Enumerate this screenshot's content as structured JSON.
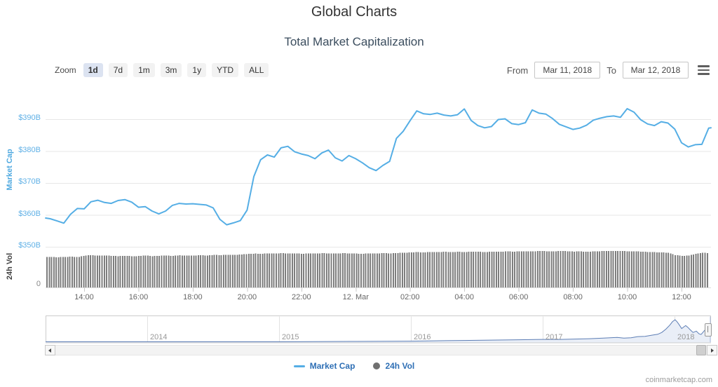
{
  "page": {
    "title": "Global Charts",
    "subtitle": "Total Market Capitalization",
    "watermark": "coinmarketcap.com"
  },
  "toolbar": {
    "zoom_label": "Zoom",
    "zoom_buttons": [
      {
        "label": "1d",
        "selected": true
      },
      {
        "label": "7d",
        "selected": false
      },
      {
        "label": "1m",
        "selected": false
      },
      {
        "label": "3m",
        "selected": false
      },
      {
        "label": "1y",
        "selected": false
      },
      {
        "label": "YTD",
        "selected": false
      },
      {
        "label": "ALL",
        "selected": false
      }
    ],
    "from_label": "From",
    "from_value": "Mar 11, 2018",
    "to_label": "To",
    "to_value": "Mar 12, 2018"
  },
  "legend": {
    "items": [
      {
        "label": "Market Cap",
        "marker": "line",
        "color": "#55aee5"
      },
      {
        "label": "24h Vol",
        "marker": "circle",
        "color": "#707070"
      }
    ]
  },
  "chart_data": {
    "type": "line+column",
    "title": "Total Market Capitalization",
    "yaxis": {
      "title": "Market Cap",
      "tick_labels": [
        "$390B",
        "$380B",
        "$370B",
        "$360B",
        "$350B"
      ],
      "tick_values": [
        390,
        380,
        370,
        360,
        350
      ],
      "unit": "USD billions",
      "label_color": "#5fb0e6"
    },
    "vol_axis": {
      "title": "24h Vol",
      "zero_label": "0"
    },
    "xaxis": {
      "tick_labels": [
        "14:00",
        "16:00",
        "18:00",
        "20:00",
        "22:00",
        "12. Mar",
        "02:00",
        "04:00",
        "06:00",
        "08:00",
        "10:00",
        "12:00"
      ]
    },
    "series": {
      "market_cap": {
        "name": "Market Cap",
        "color": "#55aee5",
        "points": [
          [
            "12:35",
            359.0
          ],
          [
            "12:45",
            358.8
          ],
          [
            "13:00",
            358.1
          ],
          [
            "13:15",
            357.4
          ],
          [
            "13:30",
            360.2
          ],
          [
            "13:45",
            362.0
          ],
          [
            "14:00",
            361.9
          ],
          [
            "14:15",
            364.1
          ],
          [
            "14:30",
            364.6
          ],
          [
            "14:45",
            363.9
          ],
          [
            "15:00",
            363.6
          ],
          [
            "15:15",
            364.5
          ],
          [
            "15:30",
            364.8
          ],
          [
            "15:45",
            364.0
          ],
          [
            "16:00",
            362.4
          ],
          [
            "16:15",
            362.6
          ],
          [
            "16:30",
            361.2
          ],
          [
            "16:45",
            360.3
          ],
          [
            "17:00",
            361.2
          ],
          [
            "17:15",
            363.0
          ],
          [
            "17:30",
            363.6
          ],
          [
            "17:45",
            363.4
          ],
          [
            "18:00",
            363.5
          ],
          [
            "18:15",
            363.3
          ],
          [
            "18:30",
            363.1
          ],
          [
            "18:45",
            362.2
          ],
          [
            "19:00",
            358.6
          ],
          [
            "19:15",
            356.9
          ],
          [
            "19:30",
            357.5
          ],
          [
            "19:45",
            358.2
          ],
          [
            "20:00",
            361.5
          ],
          [
            "20:15",
            372.0
          ],
          [
            "20:30",
            377.3
          ],
          [
            "20:45",
            378.8
          ],
          [
            "21:00",
            378.1
          ],
          [
            "21:15",
            381.0
          ],
          [
            "21:30",
            381.5
          ],
          [
            "21:45",
            379.8
          ],
          [
            "22:00",
            379.1
          ],
          [
            "22:15",
            378.6
          ],
          [
            "22:30",
            377.6
          ],
          [
            "22:45",
            379.4
          ],
          [
            "23:00",
            380.3
          ],
          [
            "23:15",
            377.9
          ],
          [
            "23:30",
            376.9
          ],
          [
            "23:45",
            378.6
          ],
          [
            "00:00",
            377.6
          ],
          [
            "00:15",
            376.3
          ],
          [
            "00:30",
            374.8
          ],
          [
            "00:45",
            373.9
          ],
          [
            "01:00",
            375.5
          ],
          [
            "01:15",
            376.8
          ],
          [
            "01:30",
            384.0
          ],
          [
            "01:45",
            386.2
          ],
          [
            "02:00",
            389.5
          ],
          [
            "02:15",
            392.6
          ],
          [
            "02:30",
            391.7
          ],
          [
            "02:45",
            391.5
          ],
          [
            "03:00",
            391.9
          ],
          [
            "03:15",
            391.3
          ],
          [
            "03:30",
            391.0
          ],
          [
            "03:45",
            391.4
          ],
          [
            "04:00",
            393.2
          ],
          [
            "04:15",
            389.6
          ],
          [
            "04:30",
            388.0
          ],
          [
            "04:45",
            387.3
          ],
          [
            "05:00",
            387.7
          ],
          [
            "05:15",
            389.9
          ],
          [
            "05:30",
            390.1
          ],
          [
            "05:45",
            388.6
          ],
          [
            "06:00",
            388.3
          ],
          [
            "06:15",
            388.9
          ],
          [
            "06:30",
            392.9
          ],
          [
            "06:45",
            391.9
          ],
          [
            "07:00",
            391.6
          ],
          [
            "07:15",
            390.2
          ],
          [
            "07:30",
            388.4
          ],
          [
            "07:45",
            387.6
          ],
          [
            "08:00",
            386.8
          ],
          [
            "08:15",
            387.2
          ],
          [
            "08:30",
            388.1
          ],
          [
            "08:45",
            389.7
          ],
          [
            "09:00",
            390.3
          ],
          [
            "09:15",
            390.8
          ],
          [
            "09:30",
            391.0
          ],
          [
            "09:45",
            390.6
          ],
          [
            "10:00",
            393.3
          ],
          [
            "10:15",
            392.2
          ],
          [
            "10:30",
            389.8
          ],
          [
            "10:45",
            388.5
          ],
          [
            "11:00",
            388.0
          ],
          [
            "11:15",
            389.2
          ],
          [
            "11:30",
            388.8
          ],
          [
            "11:45",
            386.9
          ],
          [
            "12:00",
            382.6
          ],
          [
            "12:15",
            381.3
          ],
          [
            "12:30",
            382.0
          ],
          [
            "12:45",
            382.1
          ],
          [
            "13:00",
            387.2
          ],
          [
            "13:05",
            387.3
          ]
        ]
      }
    },
    "volume": {
      "name": "24h Vol",
      "color": "#7d7d7d",
      "max": 18.5,
      "unit": "USD billions",
      "aligned_to": "market_cap",
      "values": [
        15.4,
        15.5,
        15.3,
        15.5,
        15.6,
        15.4,
        16.2,
        16.4,
        16.1,
        16.3,
        16.0,
        15.9,
        16.1,
        15.8,
        16.0,
        16.2,
        15.9,
        16.1,
        16.2,
        16.0,
        16.3,
        16.1,
        16.2,
        16.4,
        16.2,
        16.5,
        16.4,
        16.6,
        16.5,
        16.7,
        17.0,
        17.2,
        17.1,
        17.3,
        17.2,
        17.4,
        17.2,
        17.3,
        17.1,
        17.3,
        17.2,
        17.4,
        17.3,
        17.2,
        17.4,
        17.3,
        17.2,
        17.1,
        17.3,
        17.2,
        17.4,
        17.3,
        17.5,
        17.6,
        17.8,
        17.9,
        17.8,
        18.0,
        17.9,
        18.1,
        18.0,
        18.1,
        18.0,
        18.2,
        18.1,
        18.0,
        18.2,
        18.1,
        18.3,
        18.2,
        18.3,
        18.4,
        18.3,
        18.5,
        18.4,
        18.3,
        18.5,
        18.4,
        18.2,
        18.3,
        18.1,
        18.3,
        18.4,
        18.5,
        18.4,
        18.5,
        18.4,
        18.3,
        18.2,
        18.0,
        17.9,
        17.8,
        17.6,
        16.4,
        16.0,
        16.2,
        17.0,
        17.6,
        17.4,
        17.4
      ]
    },
    "navigator": {
      "year_labels": [
        "2014",
        "2015",
        "2016",
        "2017",
        "2018"
      ],
      "year_fracs": [
        0.1528,
        0.3509,
        0.549,
        0.7471,
        0.9452
      ],
      "line_color": "#5d7eb5",
      "fill_color": "#e9eef7",
      "points": [
        [
          0.0,
          0.03
        ],
        [
          0.153,
          0.03
        ],
        [
          0.351,
          0.03
        ],
        [
          0.458,
          0.045
        ],
        [
          0.549,
          0.06
        ],
        [
          0.585,
          0.075
        ],
        [
          0.627,
          0.09
        ],
        [
          0.669,
          0.105
        ],
        [
          0.711,
          0.12
        ],
        [
          0.747,
          0.135
        ],
        [
          0.774,
          0.135
        ],
        [
          0.796,
          0.15
        ],
        [
          0.817,
          0.165
        ],
        [
          0.838,
          0.195
        ],
        [
          0.859,
          0.225
        ],
        [
          0.869,
          0.195
        ],
        [
          0.88,
          0.21
        ],
        [
          0.89,
          0.26
        ],
        [
          0.901,
          0.27
        ],
        [
          0.911,
          0.32
        ],
        [
          0.92,
          0.36
        ],
        [
          0.926,
          0.44
        ],
        [
          0.932,
          0.58
        ],
        [
          0.938,
          0.76
        ],
        [
          0.942,
          0.91
        ],
        [
          0.946,
          1.0
        ],
        [
          0.949,
          0.91
        ],
        [
          0.952,
          0.79
        ],
        [
          0.956,
          0.61
        ],
        [
          0.959,
          0.68
        ],
        [
          0.962,
          0.74
        ],
        [
          0.965,
          0.67
        ],
        [
          0.969,
          0.55
        ],
        [
          0.973,
          0.44
        ],
        [
          0.978,
          0.5
        ],
        [
          0.982,
          0.38
        ],
        [
          0.985,
          0.35
        ],
        [
          0.988,
          0.45
        ],
        [
          0.991,
          0.55
        ],
        [
          0.994,
          0.58
        ],
        [
          0.997,
          0.56
        ],
        [
          1.0,
          0.58
        ]
      ]
    }
  }
}
